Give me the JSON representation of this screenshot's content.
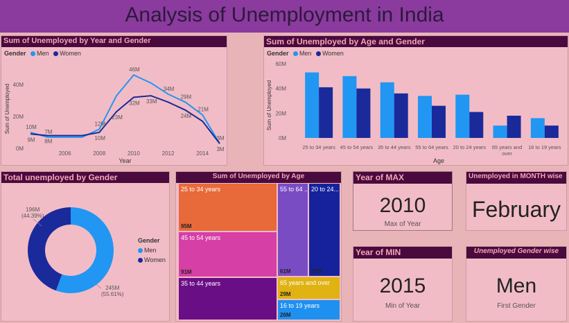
{
  "title": "Analysis of Unemployment in India",
  "colors": {
    "men": "#2196f3",
    "women": "#1a2a9a"
  },
  "line_panel": {
    "title": "Sum of Unemployed by Year and Gender",
    "legend_title": "Gender",
    "men": "Men",
    "women": "Women"
  },
  "bar_panel": {
    "title": "Sum of Unemployed by Age and Gender",
    "legend_title": "Gender",
    "men": "Men",
    "women": "Women"
  },
  "donut_panel": {
    "title": "Total unemployed by Gender",
    "legend_title": "Gender",
    "men": "Men",
    "women": "Women",
    "label_women": "196M",
    "label_women_pct": "(44.39%)",
    "label_men": "245M",
    "label_men_pct": "(55.61%)"
  },
  "treemap_panel": {
    "title": "Sum of Unemployed by Age"
  },
  "cards": {
    "max": {
      "title": "Year of MAX",
      "value": "2010",
      "sub": "Max of Year"
    },
    "month": {
      "title": "Unemployed in MONTH wise",
      "value": "February"
    },
    "min": {
      "title": "Year of MIN",
      "value": "2015",
      "sub": "Min of Year"
    },
    "gender": {
      "title": "Unemployed Gender wise",
      "value": "Men",
      "sub": "First Gender"
    }
  },
  "chart_data": [
    {
      "type": "line",
      "title": "Sum of Unemployed by Year and Gender",
      "xlabel": "Year",
      "ylabel": "Sum of Unemployed",
      "x": [
        2004,
        2005,
        2006,
        2007,
        2008,
        2009,
        2010,
        2011,
        2012,
        2013,
        2014,
        2015
      ],
      "x_ticks": [
        "2006",
        "2008",
        "2010",
        "2012",
        "2014"
      ],
      "y_ticks": [
        "0M",
        "20M",
        "40M"
      ],
      "ylim": [
        0,
        50
      ],
      "series": [
        {
          "name": "Men",
          "values": [
            10,
            7,
            7,
            7,
            12,
            33,
            46,
            41,
            34,
            29,
            21,
            3
          ]
        },
        {
          "name": "Women",
          "values": [
            9,
            8,
            8,
            8,
            10,
            23,
            32,
            33,
            29,
            24,
            17,
            3
          ]
        }
      ],
      "data_labels": [
        {
          "series": "Men",
          "x": 2004,
          "text": "10M"
        },
        {
          "series": "Women",
          "x": 2004,
          "text": "9M"
        },
        {
          "series": "Men",
          "x": 2005,
          "text": "7M"
        },
        {
          "series": "Women",
          "x": 2005,
          "text": "8M"
        },
        {
          "series": "Men",
          "x": 2008,
          "text": "12M"
        },
        {
          "series": "Women",
          "x": 2008,
          "text": "10M"
        },
        {
          "series": "Women",
          "x": 2009,
          "text": "23M"
        },
        {
          "series": "Men",
          "x": 2010,
          "text": "46M"
        },
        {
          "series": "Women",
          "x": 2010,
          "text": "32M"
        },
        {
          "series": "Women",
          "x": 2011,
          "text": "33M"
        },
        {
          "series": "Men",
          "x": 2012,
          "text": "34M"
        },
        {
          "series": "Men",
          "x": 2013,
          "text": "29M"
        },
        {
          "series": "Women",
          "x": 2013,
          "text": "24M"
        },
        {
          "series": "Men",
          "x": 2014,
          "text": "21M"
        },
        {
          "series": "Men",
          "x": 2015,
          "text": "3M"
        },
        {
          "series": "Women",
          "x": 2015,
          "text": "3M"
        }
      ]
    },
    {
      "type": "bar",
      "title": "Sum of Unemployed by Age and Gender",
      "xlabel": "Age",
      "ylabel": "Sum of Unemployed",
      "categories": [
        "25 to 34 years",
        "45 to 54 years",
        "35 to 44 years",
        "55 to 64 years",
        "20 to 24 years",
        "65 years and over",
        "16 to 19 years"
      ],
      "y_ticks": [
        "0M",
        "20M",
        "40M",
        "60M"
      ],
      "ylim": [
        0,
        60
      ],
      "series": [
        {
          "name": "Men",
          "values": [
            53,
            50,
            45,
            34,
            35,
            10,
            16
          ]
        },
        {
          "name": "Women",
          "values": [
            41,
            40,
            36,
            26,
            21,
            18,
            10
          ]
        }
      ]
    },
    {
      "type": "pie",
      "title": "Total unemployed by Gender",
      "categories": [
        "Men",
        "Women"
      ],
      "values": [
        245,
        196
      ],
      "percent": [
        55.61,
        44.39
      ]
    },
    {
      "type": "treemap",
      "title": "Sum of Unemployed by Age",
      "categories": [
        "25 to 34 years",
        "45 to 54 years",
        "35 to 44 years",
        "55 to 64 ...",
        "20 to 24...",
        "65 years and over",
        "16 to 19 years"
      ],
      "values": [
        95,
        91,
        61,
        61,
        57,
        29,
        26
      ],
      "value_labels": [
        "95M",
        "91M",
        "",
        "61M",
        "57M",
        "29M",
        "26M"
      ],
      "colors": [
        "#e8693a",
        "#d63fa6",
        "#6a0e86",
        "#7a4cc4",
        "#15229c",
        "#e0b212",
        "#1e90f0"
      ]
    }
  ]
}
